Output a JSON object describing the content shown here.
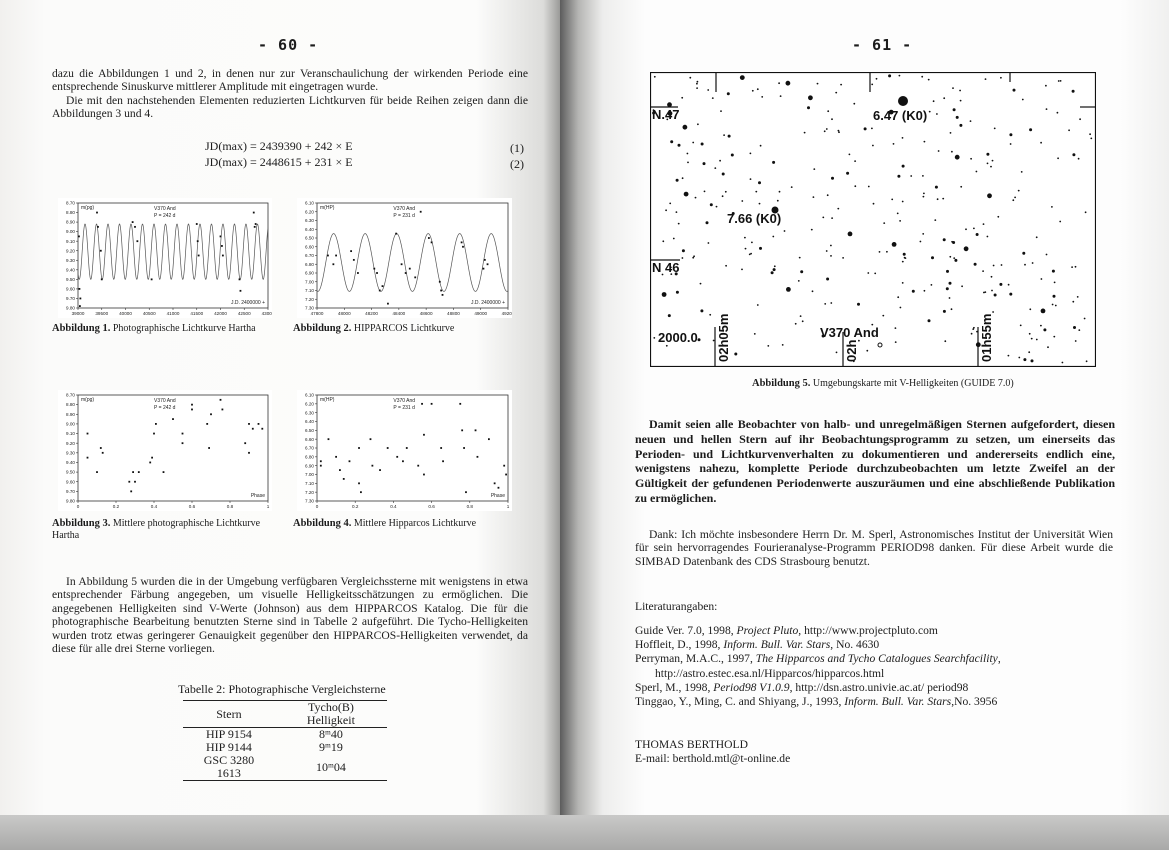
{
  "left_page": {
    "page_number": "- 60 -",
    "para1": "dazu die Abbildungen 1 und 2, in denen nur zur Veranschaulichung der wirkenden Periode eine entsprechende Sinuskurve mittlerer Amplitude mit eingetragen wurde.",
    "para2": "Die mit den nachstehenden Elementen reduzierten Lichtkurven für beide Reihen zeigen dann die Abbildungen 3 und 4.",
    "equations": [
      {
        "text": "JD(max) = 2439390 + 242 × E",
        "number": "(1)"
      },
      {
        "text": "JD(max) = 2448615 + 231 × E",
        "number": "(2)"
      }
    ],
    "figures": [
      {
        "label": "Abbildung 1.",
        "caption": "Photographische Lichtkurve Hartha"
      },
      {
        "label": "Abbildung 2.",
        "caption": "HIPPARCOS Lichtkurve"
      },
      {
        "label": "Abbildung 3.",
        "caption": "Mittlere photographische Lichtkurve Hartha"
      },
      {
        "label": "Abbildung 4.",
        "caption": "Mittlere Hipparcos Lichtkurve"
      }
    ],
    "para3": "In Abbildung 5 wurden die in der Umgebung verfügbaren Vergleichssterne mit wenigstens in etwa entsprechender Färbung angegeben, um visuelle Helligkeitsschätzungen zu ermöglichen. Die angegebenen Helligkeiten sind V-Werte (Johnson) aus dem HIPPARCOS Katalog. Die für die photographische Bearbeitung benutzten Sterne sind in Tabelle 2 aufgeführt. Die Tycho-Helligkeiten wurden trotz etwas geringerer Genauigkeit gegenüber den HIPPARCOS-Helligkeiten verwendet, da diese für alle drei Sterne vorliegen.",
    "table": {
      "caption": "Tabelle 2: Photographische Vergleichsterne",
      "headers": [
        "Stern",
        "Tycho(B) Helligkeit"
      ],
      "rows": [
        [
          "HIP 9154",
          "8ᵐ40"
        ],
        [
          "HIP 9144",
          "9ᵐ19"
        ],
        [
          "GSC 3280 1613",
          "10ᵐ04"
        ]
      ]
    }
  },
  "chart_data": [
    {
      "type": "scatter",
      "ylabel": "m(pg)",
      "annotation": [
        "V370 And",
        "P = 242 d"
      ],
      "xlabel": "J.D. 2400000 +",
      "xlim": [
        39000,
        43000
      ],
      "ylim": [
        8.7,
        9.8
      ],
      "y_inverted": true,
      "x_ticks": [
        "39000",
        "39500",
        "40000",
        "40500",
        "41000",
        "41500",
        "42000",
        "42500",
        "43000"
      ],
      "y_ticks": [
        "8.70",
        "8.80",
        "8.90",
        "9.00",
        "9.10",
        "9.20",
        "9.30",
        "9.40",
        "9.50",
        "9.60",
        "9.70",
        "9.80"
      ],
      "sine_curve": {
        "period": 242,
        "epoch": 39390,
        "mean": 9.21,
        "amplitude": 0.29
      },
      "points": [
        [
          39020,
          9.05
        ],
        [
          39030,
          9.6
        ],
        [
          39040,
          9.78
        ],
        [
          39050,
          9.7
        ],
        [
          39400,
          8.8
        ],
        [
          39420,
          8.95
        ],
        [
          39480,
          9.2
        ],
        [
          39500,
          9.5
        ],
        [
          40150,
          8.9
        ],
        [
          40200,
          8.95
        ],
        [
          40250,
          9.1
        ],
        [
          40550,
          9.5
        ],
        [
          41500,
          8.92
        ],
        [
          41520,
          9.1
        ],
        [
          41540,
          9.25
        ],
        [
          42000,
          9.05
        ],
        [
          42030,
          9.15
        ],
        [
          42050,
          9.25
        ],
        [
          42400,
          9.5
        ],
        [
          42420,
          9.62
        ],
        [
          42700,
          8.8
        ],
        [
          42720,
          8.95
        ],
        [
          42740,
          8.92
        ]
      ]
    },
    {
      "type": "scatter",
      "ylabel": "m(HP)",
      "annotation": [
        "V370 And",
        "P = 231 d"
      ],
      "xlabel": "J.D. 2400000 +",
      "xlim": [
        47800,
        49200
      ],
      "ylim": [
        6.1,
        7.3
      ],
      "y_inverted": true,
      "x_ticks": [
        "47800",
        "48000",
        "48200",
        "48400",
        "48600",
        "48800",
        "49000",
        "49200"
      ],
      "y_ticks": [
        "6.10",
        "6.20",
        "6.30",
        "6.40",
        "6.50",
        "6.60",
        "6.70",
        "6.80",
        "6.90",
        "7.00",
        "7.10",
        "7.20",
        "7.30"
      ],
      "sine_curve": {
        "period": 231,
        "epoch": 48615,
        "mean": 6.78,
        "amplitude": 0.33
      },
      "points": [
        [
          47880,
          6.7
        ],
        [
          47920,
          6.8
        ],
        [
          47940,
          6.7
        ],
        [
          48050,
          6.65
        ],
        [
          48070,
          6.75
        ],
        [
          48100,
          6.9
        ],
        [
          48220,
          6.85
        ],
        [
          48240,
          6.9
        ],
        [
          48260,
          7.1
        ],
        [
          48280,
          7.05
        ],
        [
          48320,
          7.25
        ],
        [
          48380,
          6.45
        ],
        [
          48420,
          6.8
        ],
        [
          48450,
          6.9
        ],
        [
          48480,
          6.85
        ],
        [
          48520,
          6.95
        ],
        [
          48560,
          6.2
        ],
        [
          48620,
          6.5
        ],
        [
          48640,
          6.55
        ],
        [
          48700,
          7.0
        ],
        [
          48710,
          7.1
        ],
        [
          48720,
          7.15
        ],
        [
          48860,
          6.55
        ],
        [
          48870,
          6.6
        ],
        [
          49020,
          6.85
        ],
        [
          49030,
          6.75
        ],
        [
          49050,
          6.8
        ]
      ]
    },
    {
      "type": "scatter",
      "ylabel": "m(pg)",
      "annotation": [
        "V370 And",
        "P = 242 d"
      ],
      "xlabel": "Phase",
      "xlim": [
        0,
        1
      ],
      "ylim": [
        8.7,
        9.8
      ],
      "y_inverted": true,
      "x_ticks": [
        "0",
        "0.2",
        "0.4",
        "0.6",
        "0.8",
        "1"
      ],
      "y_ticks": [
        "8.70",
        "8.80",
        "8.90",
        "9.00",
        "9.10",
        "9.20",
        "9.30",
        "9.40",
        "9.50",
        "9.60",
        "9.70",
        "9.80"
      ],
      "points": [
        [
          0.05,
          9.1
        ],
        [
          0.05,
          9.35
        ],
        [
          0.1,
          9.5
        ],
        [
          0.12,
          9.25
        ],
        [
          0.13,
          9.3
        ],
        [
          0.27,
          9.6
        ],
        [
          0.28,
          9.7
        ],
        [
          0.29,
          9.5
        ],
        [
          0.3,
          9.6
        ],
        [
          0.32,
          9.5
        ],
        [
          0.38,
          9.4
        ],
        [
          0.39,
          9.35
        ],
        [
          0.4,
          9.1
        ],
        [
          0.41,
          9.0
        ],
        [
          0.45,
          9.5
        ],
        [
          0.5,
          8.95
        ],
        [
          0.55,
          9.1
        ],
        [
          0.55,
          9.2
        ],
        [
          0.6,
          8.85
        ],
        [
          0.6,
          8.8
        ],
        [
          0.68,
          9.0
        ],
        [
          0.69,
          9.25
        ],
        [
          0.7,
          8.9
        ],
        [
          0.75,
          8.75
        ],
        [
          0.76,
          8.85
        ],
        [
          0.88,
          9.2
        ],
        [
          0.9,
          9.0
        ],
        [
          0.9,
          9.3
        ],
        [
          0.92,
          9.05
        ],
        [
          0.95,
          9.0
        ],
        [
          0.97,
          9.05
        ]
      ]
    },
    {
      "type": "scatter",
      "ylabel": "m(HP)",
      "annotation": [
        "V370 And",
        "P = 231 d"
      ],
      "xlabel": "Phase",
      "xlim": [
        0,
        1
      ],
      "ylim": [
        6.1,
        7.3
      ],
      "y_inverted": true,
      "x_ticks": [
        "0",
        "0.2",
        "0.4",
        "0.6",
        "0.8",
        "1"
      ],
      "y_ticks": [
        "6.10",
        "6.20",
        "6.30",
        "6.40",
        "6.50",
        "6.60",
        "6.70",
        "6.80",
        "6.90",
        "7.00",
        "7.10",
        "7.20",
        "7.30"
      ],
      "points": [
        [
          0.02,
          6.85
        ],
        [
          0.02,
          6.9
        ],
        [
          0.06,
          6.6
        ],
        [
          0.1,
          6.8
        ],
        [
          0.12,
          6.95
        ],
        [
          0.14,
          7.05
        ],
        [
          0.17,
          6.85
        ],
        [
          0.22,
          6.7
        ],
        [
          0.22,
          7.1
        ],
        [
          0.23,
          7.2
        ],
        [
          0.28,
          6.6
        ],
        [
          0.29,
          6.9
        ],
        [
          0.33,
          6.95
        ],
        [
          0.37,
          6.7
        ],
        [
          0.42,
          6.8
        ],
        [
          0.45,
          6.85
        ],
        [
          0.47,
          6.7
        ],
        [
          0.53,
          6.9
        ],
        [
          0.55,
          6.2
        ],
        [
          0.56,
          6.55
        ],
        [
          0.56,
          7.0
        ],
        [
          0.6,
          6.2
        ],
        [
          0.65,
          6.7
        ],
        [
          0.66,
          6.85
        ],
        [
          0.75,
          6.2
        ],
        [
          0.76,
          6.5
        ],
        [
          0.77,
          6.7
        ],
        [
          0.78,
          7.2
        ],
        [
          0.83,
          6.5
        ],
        [
          0.84,
          6.8
        ],
        [
          0.9,
          6.6
        ],
        [
          0.93,
          7.1
        ],
        [
          0.95,
          7.15
        ],
        [
          0.98,
          6.9
        ],
        [
          0.99,
          7.0
        ]
      ]
    }
  ],
  "right_page": {
    "page_number": "- 61 -",
    "star_chart": {
      "labels": {
        "n47": "N.47",
        "n46": "N 46",
        "star1": "6.47 (K0)",
        "star2": "7.66 (K0)",
        "epoch": "2000.0",
        "target": "V370 And",
        "ra1": "02h05m",
        "ra2": "02h",
        "ra3": "01h55m"
      }
    },
    "figure5": {
      "label": "Abbildung 5.",
      "caption": "Umgebungskarte mit V-Helligkeiten (GUIDE 7.0)"
    },
    "bold_para": "Damit seien alle Beobachter von halb- und unregelmäßigen Sternen aufgefordert, diesen neuen und hellen Stern auf ihr Beobachtungsprogramm zu setzen, um einerseits das Perioden- und Lichtkurvenverhalten zu dokumentieren und andererseits endlich eine, wenigstens nahezu, komplette Periode durchzubeobachten um letzte Zweifel an der Gültigkeit der gefundenen Periodenwerte auszuräumen und eine abschließende Publikation zu ermöglichen.",
    "thanks": "Dank: Ich möchte insbesondere Herrn Dr. M. Sperl, Astronomisches Institut der Universität Wien für sein hervorragendes Fourieranalyse-Programm PERIOD98 danken. Für diese Arbeit wurde die SIMBAD Datenbank des CDS Strasbourg benutzt.",
    "refs_heading": "Literaturangaben:",
    "refs": [
      {
        "pre": "Guide Ver. 7.0, 1998, ",
        "ital": "Project Pluto",
        "post": ", http://www.projectpluto.com"
      },
      {
        "pre": "Hoffleit, D., 1998, ",
        "ital": "Inform. Bull. Var. Stars",
        "post": ", No. 4630"
      },
      {
        "pre": "Perryman, M.A.C., 1997, ",
        "ital": "The Hipparcos and Tycho Catalogues Searchfacility",
        "post": ","
      },
      {
        "pre": "",
        "ital": "",
        "post": "http://astro.estec.esa.nl/Hipparcos/hipparcos.html"
      },
      {
        "pre": "Sperl, M., 1998, ",
        "ital": "Period98 V1.0.9",
        "post": ", http://dsn.astro.univie.ac.at/ period98"
      },
      {
        "pre": "Tinggao, Y., Ming, C. and Shiyang, J., 1993, ",
        "ital": "Inform. Bull. Var. Stars",
        "post": ",No. 3956"
      }
    ],
    "author": "THOMAS BERTHOLD",
    "email": "E-mail: berthold.mtl@t-online.de"
  }
}
